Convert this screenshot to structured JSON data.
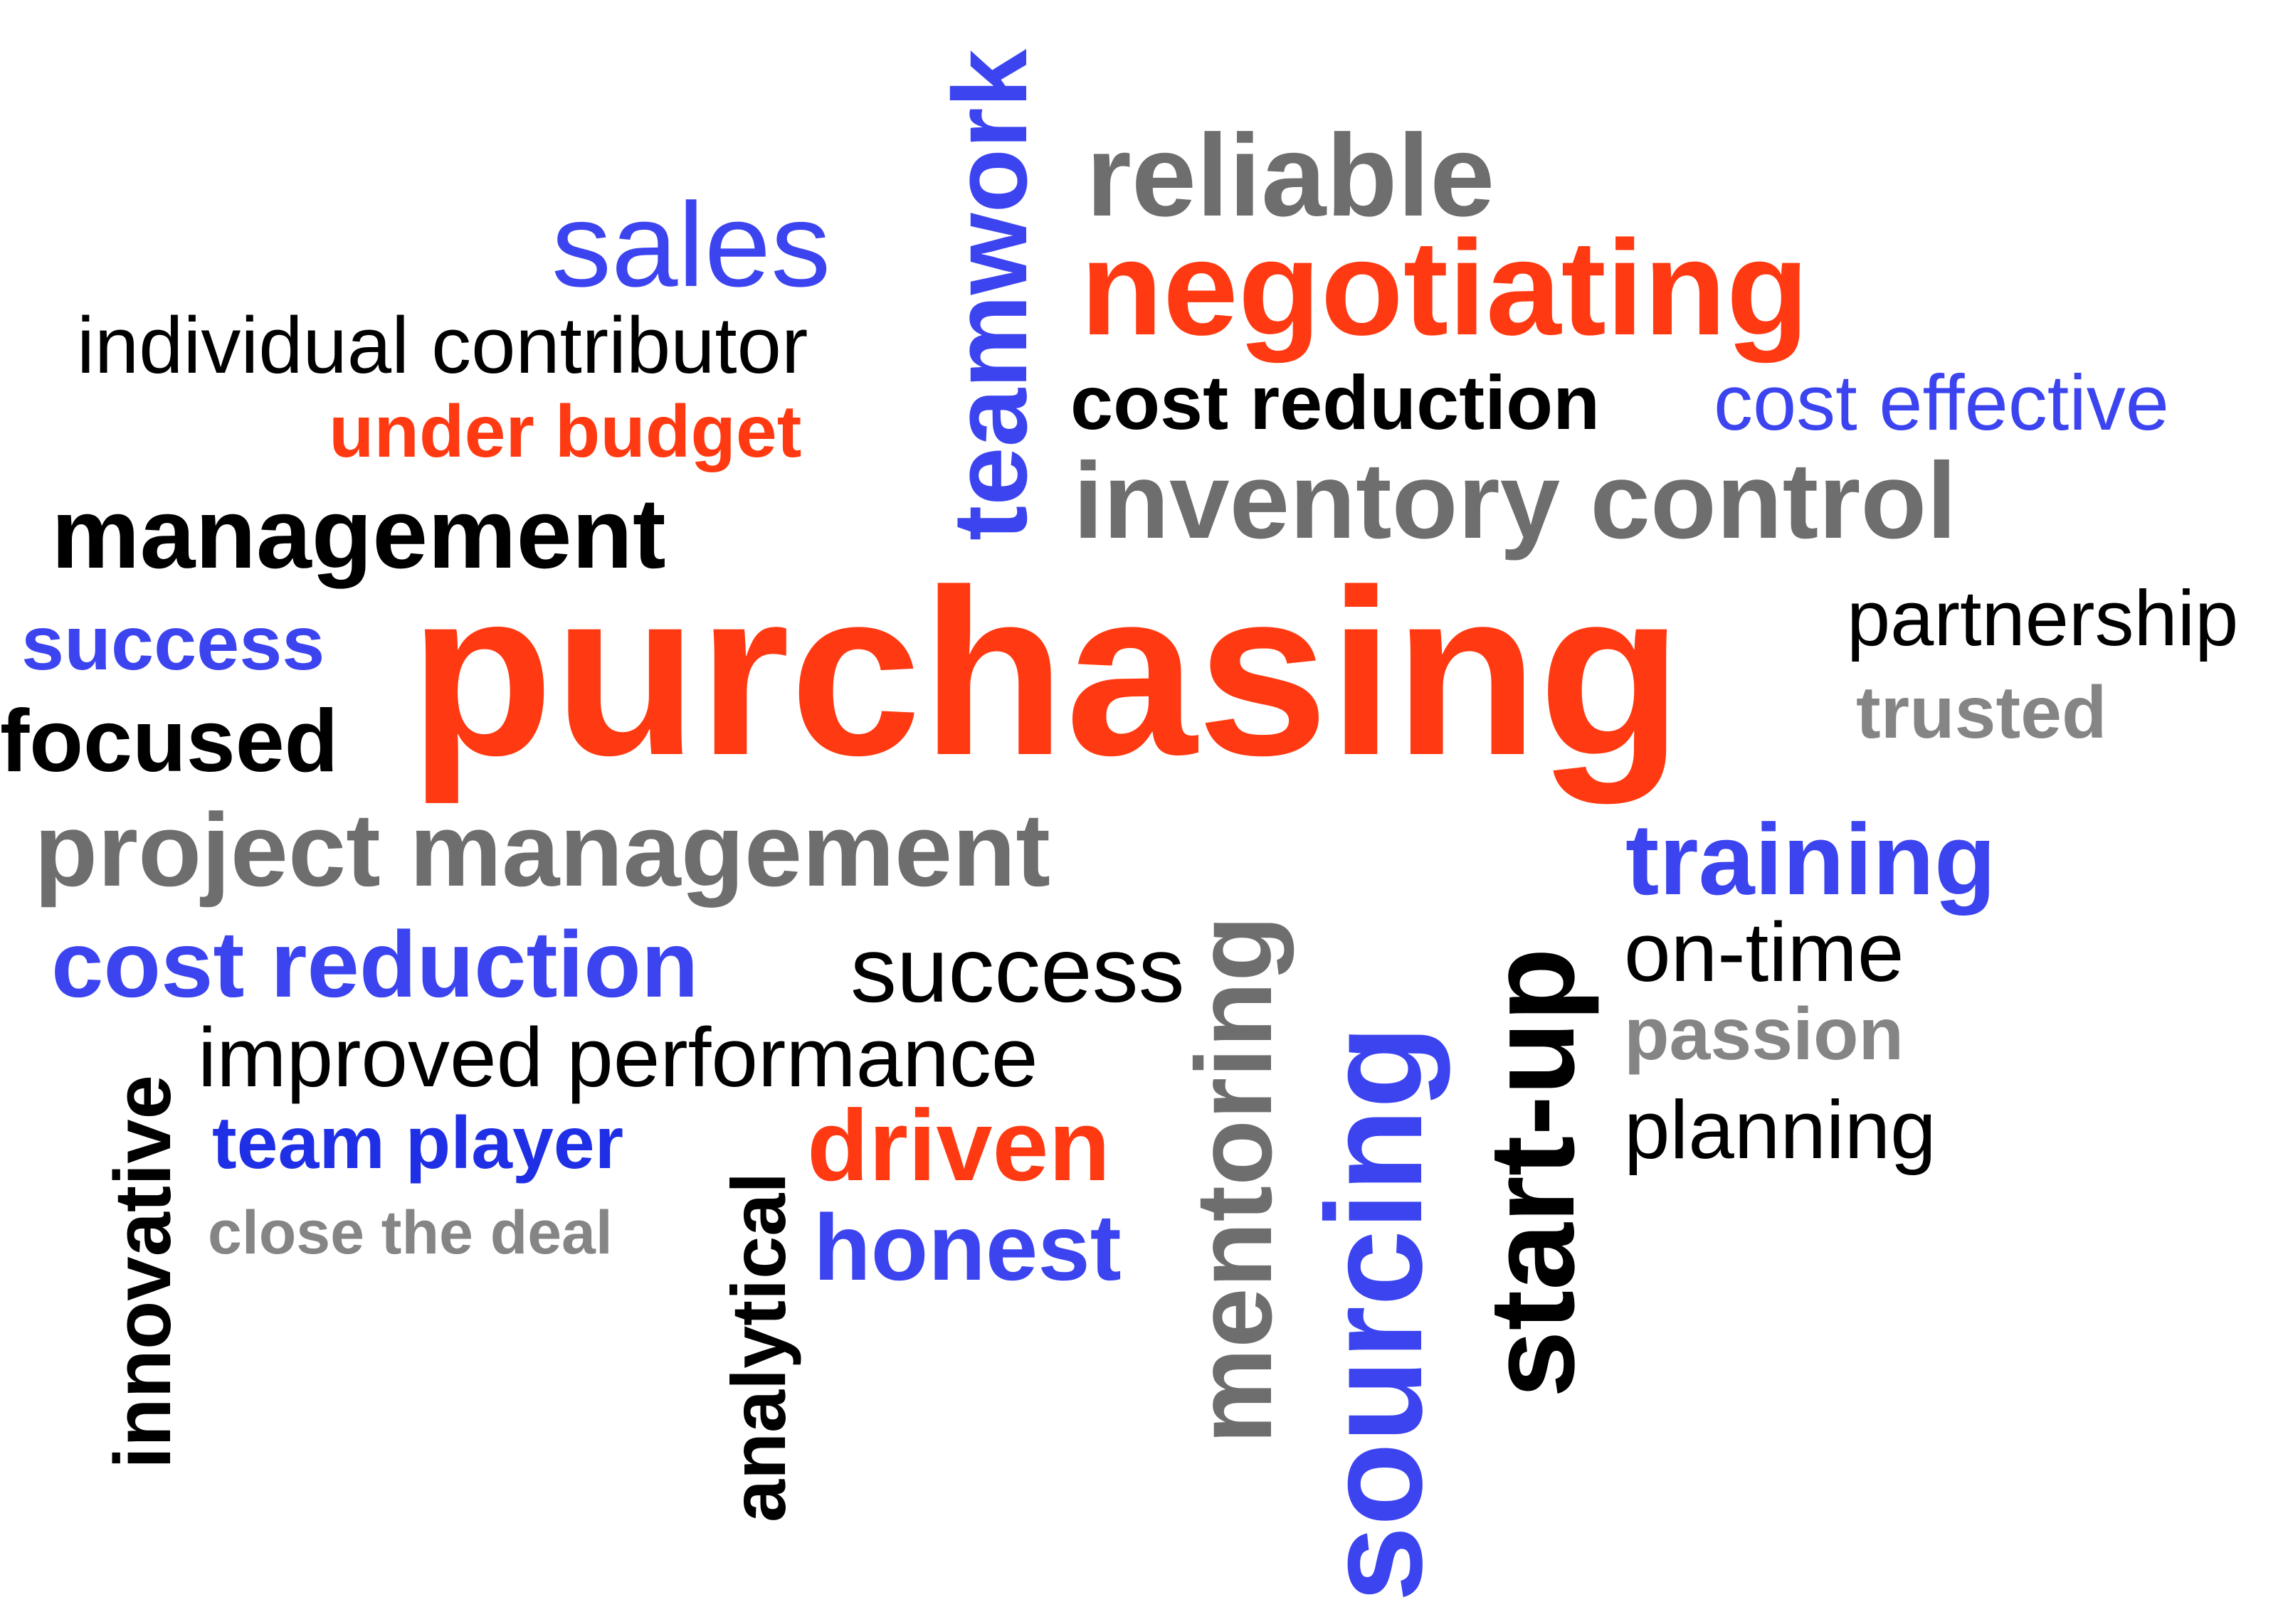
{
  "colors": {
    "orange": "#ff3a12",
    "blue": "#3c44f0",
    "dark_blue": "#1f2fe6",
    "black": "#000000",
    "gray": "#6e6e6e",
    "light_gray": "#858585"
  },
  "words": {
    "purchasing": "purchasing",
    "sales": "sales",
    "individual_contributor": "individual contributor",
    "under_budget": "under budget",
    "management": "management",
    "success_blue": "success",
    "focused": "focused",
    "teamwork": "teamwork",
    "reliable": "reliable",
    "negotiating": "negotiating",
    "cost_reduction_black": "cost reduction",
    "cost_effective": "cost effective",
    "inventory_control": "inventory control",
    "partnership": "partnership",
    "trusted": "trusted",
    "project_management": "project management",
    "cost_reduction_blue": "cost reduction",
    "success_black": "success",
    "improved_performance": "improved performance",
    "team_player": "team player",
    "close_the_deal": "close the deal",
    "innovative": "innovative",
    "analytical": "analytical",
    "driven": "driven",
    "honest": "honest",
    "mentoring": "mentoring",
    "sourcing": "sourcing",
    "start_up": "start-up",
    "training": "training",
    "on_time": "on-time",
    "passion": "passion",
    "planning": "planning"
  }
}
